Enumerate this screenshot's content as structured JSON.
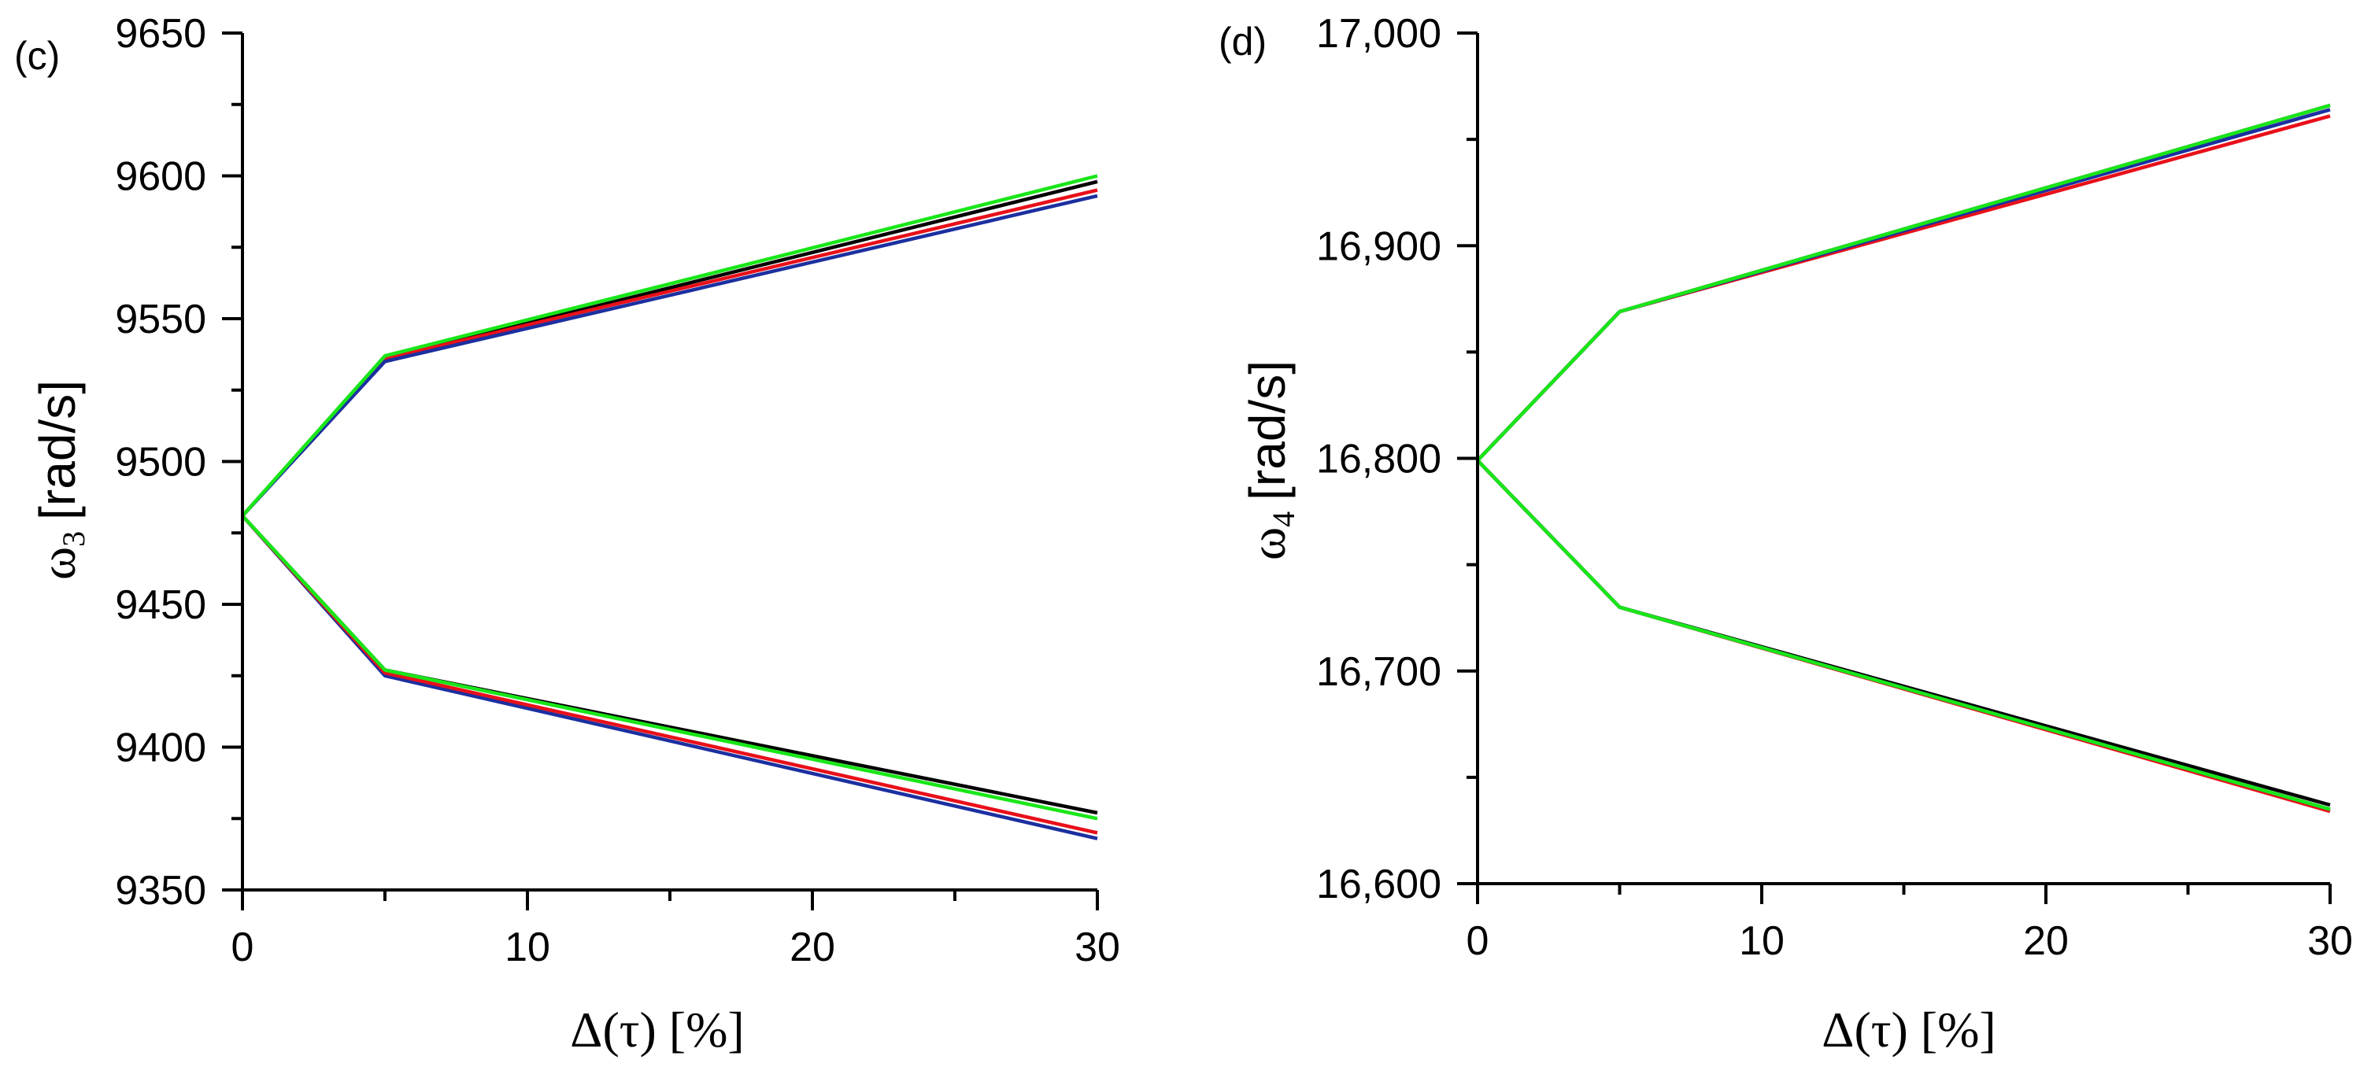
{
  "chart_data": [
    {
      "type": "line",
      "panel_label": "(c)",
      "xlabel": "Δ(τ) [%]",
      "ylabel": "ω3 [rad/s]",
      "ylabel_symbol": "ω",
      "ylabel_subscript": "3",
      "ylabel_unit": "[rad/s]",
      "xlabel_main": "Δ(τ) [%]",
      "xlim": [
        0,
        30
      ],
      "ylim": [
        9350,
        9650
      ],
      "x_ticks": [
        "0",
        "10",
        "20",
        "30"
      ],
      "x_tick_values": [
        0,
        10,
        20,
        30
      ],
      "x_minor_values": [
        5,
        15,
        25
      ],
      "y_ticks": [
        "9350",
        "9400",
        "9450",
        "9500",
        "9550",
        "9600",
        "9650"
      ],
      "y_tick_values": [
        9350,
        9400,
        9450,
        9500,
        9550,
        9600,
        9650
      ],
      "y_minor_values": [
        9375,
        9425,
        9475,
        9525,
        9575,
        9625
      ],
      "x": [
        0,
        5,
        30
      ],
      "series": [
        {
          "name": "black upper",
          "color": "#000000",
          "values": [
            9481,
            9536,
            9598
          ]
        },
        {
          "name": "red upper",
          "color": "#e8101a",
          "values": [
            9481,
            9536,
            9595
          ]
        },
        {
          "name": "blue upper",
          "color": "#1c2fa0",
          "values": [
            9481,
            9535,
            9593
          ]
        },
        {
          "name": "green upper",
          "color": "#19e619",
          "values": [
            9481,
            9537,
            9600
          ]
        },
        {
          "name": "black lower",
          "color": "#000000",
          "values": [
            9481,
            9427,
            9377
          ]
        },
        {
          "name": "blue lower",
          "color": "#1c2fa0",
          "values": [
            9481,
            9425,
            9368
          ]
        },
        {
          "name": "red lower",
          "color": "#e8101a",
          "values": [
            9481,
            9426,
            9370
          ]
        },
        {
          "name": "green lower",
          "color": "#19e619",
          "values": [
            9481,
            9427,
            9375
          ]
        }
      ]
    },
    {
      "type": "line",
      "panel_label": "(d)",
      "xlabel": "Δ(τ) [%]",
      "ylabel": "ω4 [rad/s]",
      "ylabel_symbol": "ω",
      "ylabel_subscript": "4",
      "ylabel_unit": "[rad/s]",
      "xlabel_main": "Δ(τ) [%]",
      "xlim": [
        0,
        30
      ],
      "ylim": [
        16600,
        17000
      ],
      "x_ticks": [
        "0",
        "10",
        "20",
        "30"
      ],
      "x_tick_values": [
        0,
        10,
        20,
        30
      ],
      "x_minor_values": [
        5,
        15,
        25
      ],
      "y_ticks": [
        "16,600",
        "16,700",
        "16,800",
        "16,900",
        "17,000"
      ],
      "y_tick_values": [
        16600,
        16700,
        16800,
        16900,
        17000
      ],
      "y_minor_values": [
        16650,
        16750,
        16850,
        16950
      ],
      "x": [
        0,
        5,
        30
      ],
      "series": [
        {
          "name": "black upper",
          "color": "#000000",
          "values": [
            16799,
            16869,
            16966
          ]
        },
        {
          "name": "red upper",
          "color": "#e8101a",
          "values": [
            16799,
            16869,
            16961
          ]
        },
        {
          "name": "blue upper",
          "color": "#1c2fa0",
          "values": [
            16799,
            16869,
            16964
          ]
        },
        {
          "name": "green upper",
          "color": "#19e619",
          "values": [
            16799,
            16869,
            16966
          ]
        },
        {
          "name": "black lower",
          "color": "#000000",
          "values": [
            16799,
            16730,
            16637
          ]
        },
        {
          "name": "red lower",
          "color": "#e8101a",
          "values": [
            16799,
            16730,
            16634
          ]
        },
        {
          "name": "blue lower",
          "color": "#1c2fa0",
          "values": [
            16799,
            16730,
            16635
          ]
        },
        {
          "name": "green lower",
          "color": "#19e619",
          "values": [
            16799,
            16730,
            16635
          ]
        }
      ]
    }
  ]
}
